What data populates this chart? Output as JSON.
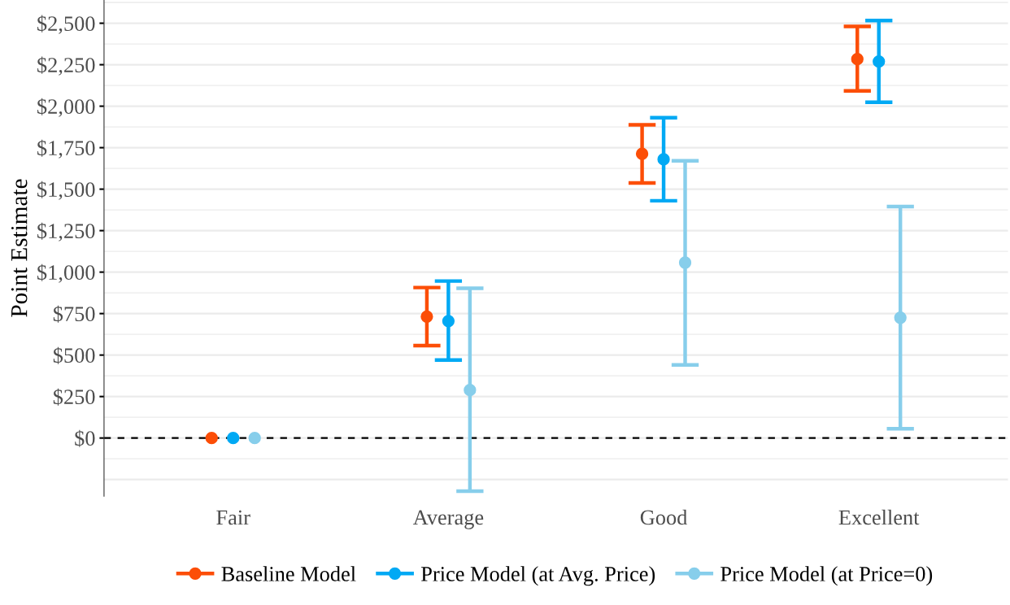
{
  "chart_data": {
    "type": "scatter",
    "ylabel": "Point Estimate",
    "categories": [
      "Fair",
      "Average",
      "Good",
      "Excellent"
    ],
    "series": [
      {
        "name": "Baseline Model",
        "color": "#fc4e07",
        "values": [
          0,
          732,
          1713,
          2284
        ],
        "errors": [
          null,
          [
            557,
            907
          ],
          [
            1537,
            1888
          ],
          [
            2092,
            2481
          ]
        ]
      },
      {
        "name": "Price Model (at Avg. Price)",
        "color": "#00a9f4",
        "values": [
          0,
          705,
          1680,
          2269
        ],
        "errors": [
          null,
          [
            470,
            946
          ],
          [
            1430,
            1931
          ],
          [
            2024,
            2516
          ]
        ]
      },
      {
        "name": "Price Model (at Price=0)",
        "color": "#87ceeb",
        "values": [
          0,
          289,
          1057,
          725
        ],
        "errors": [
          null,
          [
            -320,
            903
          ],
          [
            441,
            1671
          ],
          [
            56,
            1395
          ]
        ]
      }
    ],
    "ylim": [
      -350,
      2640
    ],
    "yticks": [
      {
        "value": 0,
        "label": "$0"
      },
      {
        "value": 250,
        "label": "$250"
      },
      {
        "value": 500,
        "label": "$500"
      },
      {
        "value": 750,
        "label": "$750"
      },
      {
        "value": 1000,
        "label": "$1,000"
      },
      {
        "value": 1250,
        "label": "$1,250"
      },
      {
        "value": 1500,
        "label": "$1,500"
      },
      {
        "value": 1750,
        "label": "$1,750"
      },
      {
        "value": 2000,
        "label": "$2,000"
      },
      {
        "value": 2250,
        "label": "$2,250"
      },
      {
        "value": 2500,
        "label": "$2,500"
      }
    ],
    "ref_lines": [
      {
        "axis": "y",
        "value": 0,
        "color": "#000000",
        "line_style": "dashed"
      }
    ],
    "grid": "y",
    "legend": "bottom",
    "marker": "circle"
  }
}
